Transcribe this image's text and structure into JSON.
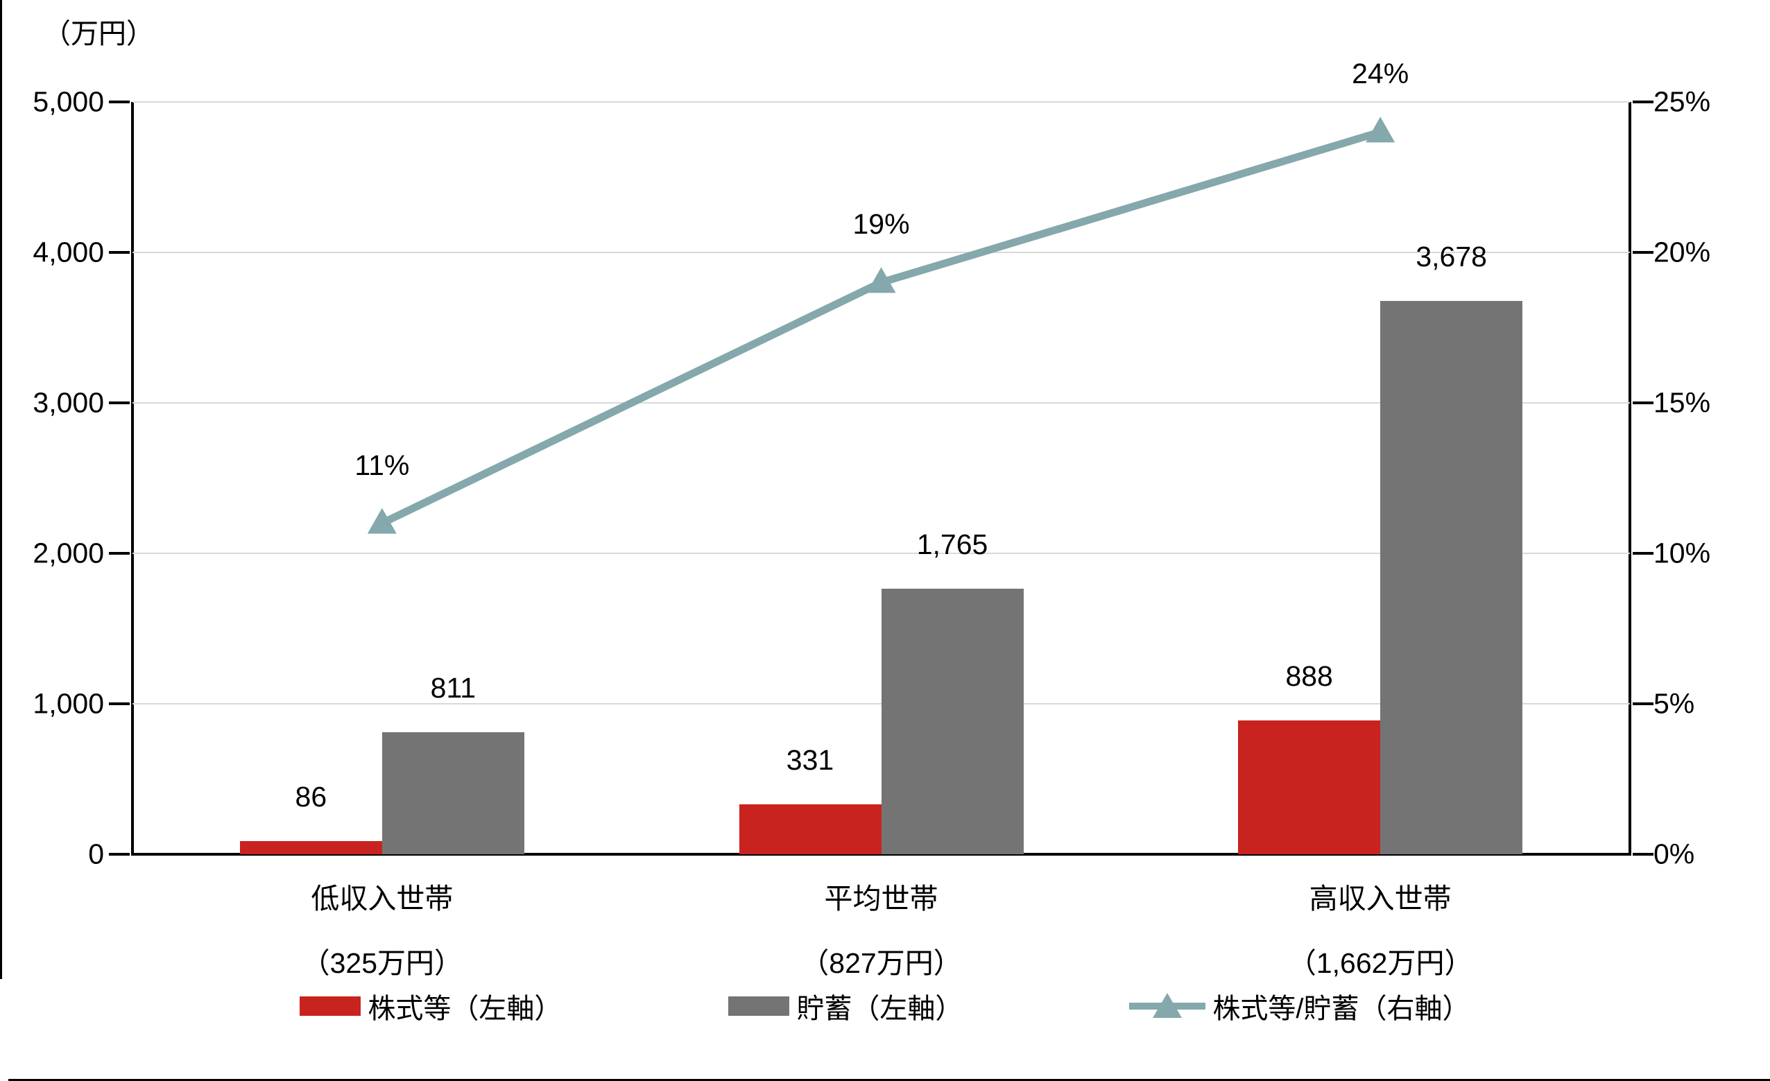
{
  "chart_data": {
    "type": "combo-bar-line",
    "title": "",
    "categories": [
      "低収入世帯",
      "平均世帯",
      "高収入世帯"
    ],
    "category_sublabels": [
      "（325万円）",
      "（827万円）",
      "（1,662万円）"
    ],
    "series": [
      {
        "name": "株式等（左軸）",
        "type": "bar",
        "axis": "left",
        "color": "#C9231F",
        "values": [
          86,
          331,
          888
        ],
        "labels": [
          "86",
          "331",
          "888"
        ]
      },
      {
        "name": "貯蓄（左軸）",
        "type": "bar",
        "axis": "left",
        "color": "#747474",
        "values": [
          811,
          1765,
          3678
        ],
        "labels": [
          "811",
          "1,765",
          "3,678"
        ]
      },
      {
        "name": "株式等/貯蓄（右軸）",
        "type": "line",
        "axis": "right",
        "color": "#84A8AB",
        "values": [
          11,
          19,
          24
        ],
        "labels": [
          "11%",
          "19%",
          "24%"
        ]
      }
    ],
    "left_axis": {
      "unit_label": "（万円）",
      "min": 0,
      "max": 5000,
      "step": 1000,
      "ticks": [
        "5,000",
        "4,000",
        "3,000",
        "2,000",
        "1,000",
        "0"
      ]
    },
    "right_axis": {
      "min": 0,
      "max": 25,
      "step": 5,
      "ticks": [
        "25%",
        "20%",
        "15%",
        "10%",
        "5%",
        "0%"
      ]
    },
    "grid": true,
    "gridline_color": "#D9D9D9",
    "axis_color": "#000000",
    "legend_position": "bottom"
  }
}
